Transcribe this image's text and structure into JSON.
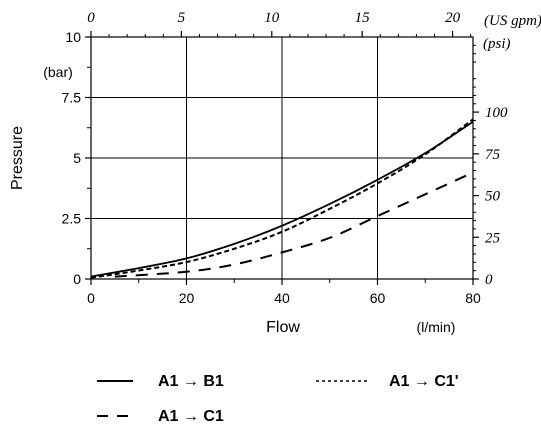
{
  "chart_data": {
    "type": "line",
    "ylabel": "Pressure",
    "ylabel_unit": "(bar)",
    "xlabel": "Flow",
    "xlabel_unit": "(l/min)",
    "xlim": [
      0,
      80
    ],
    "ylim": [
      0,
      10
    ],
    "grid": true,
    "x_ticks": [
      "0",
      "20",
      "40",
      "60",
      "80"
    ],
    "y_ticks": [
      "0",
      "2.5",
      "5",
      "7.5",
      "10"
    ],
    "top_axis": {
      "unit": "(US gpm)",
      "lim": [
        0,
        21.13
      ],
      "ticks": [
        "0",
        "5",
        "10",
        "15",
        "20"
      ]
    },
    "right_axis": {
      "unit": "(psi)",
      "lim": [
        0,
        145
      ],
      "ticks": [
        "0",
        "25",
        "50",
        "75",
        "100"
      ]
    },
    "legend_placement": "bottom",
    "series": [
      {
        "name": "A1 → B1",
        "style": "solid",
        "x": [
          0,
          10,
          20,
          30,
          40,
          50,
          60,
          70,
          80
        ],
        "y": [
          0.1,
          0.45,
          0.85,
          1.45,
          2.2,
          3.1,
          4.1,
          5.2,
          6.5
        ]
      },
      {
        "name": "A1 → C1",
        "style": "long-dash",
        "x": [
          5,
          20,
          30,
          40,
          50,
          60,
          70,
          80
        ],
        "y": [
          0.1,
          0.3,
          0.6,
          1.1,
          1.7,
          2.6,
          3.5,
          4.4
        ]
      },
      {
        "name": "A1 → C1'",
        "style": "short-dash",
        "x": [
          0,
          10,
          20,
          30,
          40,
          50,
          60,
          70,
          80
        ],
        "y": [
          0.05,
          0.35,
          0.7,
          1.25,
          1.95,
          2.9,
          3.95,
          5.15,
          6.6
        ]
      }
    ]
  }
}
